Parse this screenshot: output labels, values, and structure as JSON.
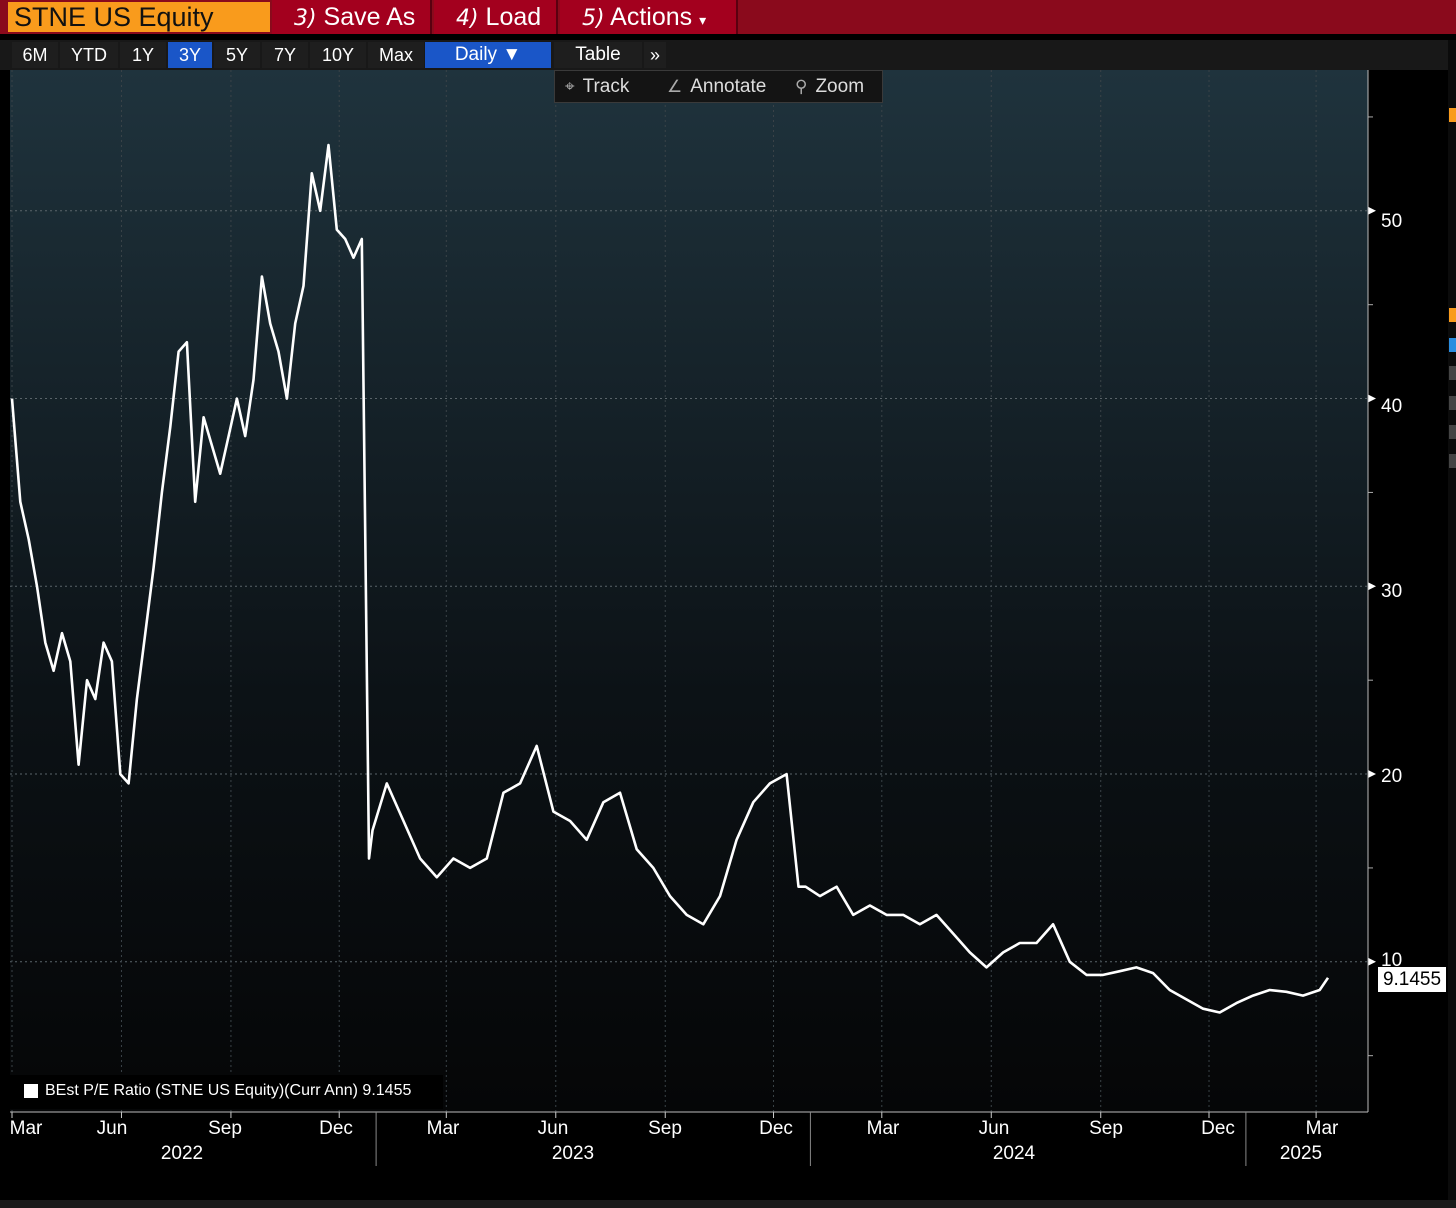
{
  "header": {
    "ticker": "STNE US Equity",
    "menu": [
      {
        "num": "3)",
        "label": "Save As"
      },
      {
        "num": "4)",
        "label": "Load"
      },
      {
        "num": "5)",
        "label": "Actions",
        "suffix": "▾"
      }
    ]
  },
  "range_buttons": [
    "6M",
    "YTD",
    "1Y",
    "3Y",
    "5Y",
    "7Y",
    "10Y",
    "Max"
  ],
  "active_range": "3Y",
  "frequency": "Daily ▼",
  "table_label": "Table",
  "more_label": "»",
  "tools": [
    {
      "icon": "crosshair-icon",
      "glyph": "⌖",
      "label": "Track"
    },
    {
      "icon": "pencil-icon",
      "glyph": "∠",
      "label": "Annotate"
    },
    {
      "icon": "magnifier-icon",
      "glyph": "⚲",
      "label": "Zoom"
    }
  ],
  "legend": {
    "label": "BEst P/E Ratio (STNE US Equity)(Curr Ann) 9.1455"
  },
  "last_value_label": "9.1455",
  "colors": {
    "ticker_bg": "#f99b1c",
    "menu_bg": "#a3001e",
    "active": "#1a56c8",
    "line": "#ffffff"
  },
  "chart_data": {
    "type": "line",
    "title": "",
    "xlabel": "",
    "ylabel": "",
    "ylim": [
      2,
      57.5
    ],
    "y_ticks": [
      10,
      20,
      30,
      40,
      50
    ],
    "grid": true,
    "legend_position": "bottom-left",
    "last_value": 9.1455,
    "x_month_labels": [
      "Mar",
      "Jun",
      "Sep",
      "Dec",
      "Mar",
      "Jun",
      "Sep",
      "Dec",
      "Mar",
      "Jun",
      "Sep",
      "Dec",
      "Mar"
    ],
    "x_year_labels": [
      "2022",
      "2023",
      "2024",
      "2025"
    ],
    "series": [
      {
        "name": "BEst P/E Ratio (STNE US Equity)(Curr Ann)",
        "x": [
          "2022-03-01",
          "2022-03-08",
          "2022-03-15",
          "2022-03-22",
          "2022-03-29",
          "2022-04-05",
          "2022-04-12",
          "2022-04-19",
          "2022-04-26",
          "2022-05-03",
          "2022-05-10",
          "2022-05-17",
          "2022-05-24",
          "2022-05-31",
          "2022-06-07",
          "2022-06-14",
          "2022-06-21",
          "2022-06-28",
          "2022-07-05",
          "2022-07-12",
          "2022-07-19",
          "2022-07-26",
          "2022-08-02",
          "2022-08-09",
          "2022-08-16",
          "2022-08-23",
          "2022-08-30",
          "2022-09-06",
          "2022-09-13",
          "2022-09-20",
          "2022-09-27",
          "2022-10-04",
          "2022-10-11",
          "2022-10-18",
          "2022-10-25",
          "2022-11-01",
          "2022-11-08",
          "2022-11-15",
          "2022-11-22",
          "2022-11-29",
          "2022-12-06",
          "2022-12-13",
          "2022-12-20",
          "2022-12-26",
          "2022-12-29",
          "2023-01-10",
          "2023-01-24",
          "2023-02-07",
          "2023-02-21",
          "2023-03-07",
          "2023-03-21",
          "2023-04-04",
          "2023-04-18",
          "2023-05-02",
          "2023-05-16",
          "2023-05-30",
          "2023-06-13",
          "2023-06-27",
          "2023-07-11",
          "2023-07-25",
          "2023-08-08",
          "2023-08-22",
          "2023-09-05",
          "2023-09-19",
          "2023-10-03",
          "2023-10-17",
          "2023-10-31",
          "2023-11-14",
          "2023-11-28",
          "2023-12-12",
          "2023-12-22",
          "2023-12-28",
          "2024-01-09",
          "2024-01-23",
          "2024-02-06",
          "2024-02-20",
          "2024-03-05",
          "2024-03-19",
          "2024-04-02",
          "2024-04-16",
          "2024-04-30",
          "2024-05-14",
          "2024-05-28",
          "2024-06-11",
          "2024-06-25",
          "2024-07-09",
          "2024-07-23",
          "2024-08-06",
          "2024-08-20",
          "2024-09-03",
          "2024-09-17",
          "2024-10-01",
          "2024-10-15",
          "2024-10-29",
          "2024-11-12",
          "2024-11-26",
          "2024-12-10",
          "2024-12-24",
          "2025-01-07",
          "2025-01-21",
          "2025-02-04",
          "2025-02-18",
          "2025-03-04",
          "2025-03-11"
        ],
        "values": [
          40.0,
          34.5,
          32.5,
          30.0,
          27.0,
          25.5,
          27.5,
          26.0,
          20.5,
          25.0,
          24.0,
          27.0,
          26.0,
          20.0,
          19.5,
          24.0,
          27.5,
          31.0,
          35.0,
          38.5,
          42.5,
          43.0,
          34.5,
          39.0,
          37.5,
          36.0,
          38.0,
          40.0,
          38.0,
          41.0,
          46.5,
          44.0,
          42.5,
          40.0,
          44.0,
          46.0,
          52.0,
          50.0,
          53.5,
          49.0,
          48.5,
          47.5,
          48.5,
          15.5,
          17.0,
          19.5,
          17.5,
          15.5,
          14.5,
          15.5,
          15.0,
          15.5,
          19.0,
          19.5,
          21.5,
          18.0,
          17.5,
          16.5,
          18.5,
          19.0,
          16.0,
          15.0,
          13.5,
          12.5,
          12.0,
          13.5,
          16.5,
          18.5,
          19.5,
          20.0,
          14.0,
          14.0,
          13.5,
          14.0,
          12.5,
          13.0,
          12.5,
          12.5,
          12.0,
          12.5,
          11.5,
          10.5,
          9.7,
          10.5,
          11.0,
          11.0,
          12.0,
          10.0,
          9.3,
          9.3,
          9.5,
          9.7,
          9.4,
          8.5,
          8.0,
          7.5,
          7.3,
          7.8,
          8.2,
          8.5,
          8.4,
          8.2,
          8.5,
          9.1455
        ]
      }
    ]
  }
}
